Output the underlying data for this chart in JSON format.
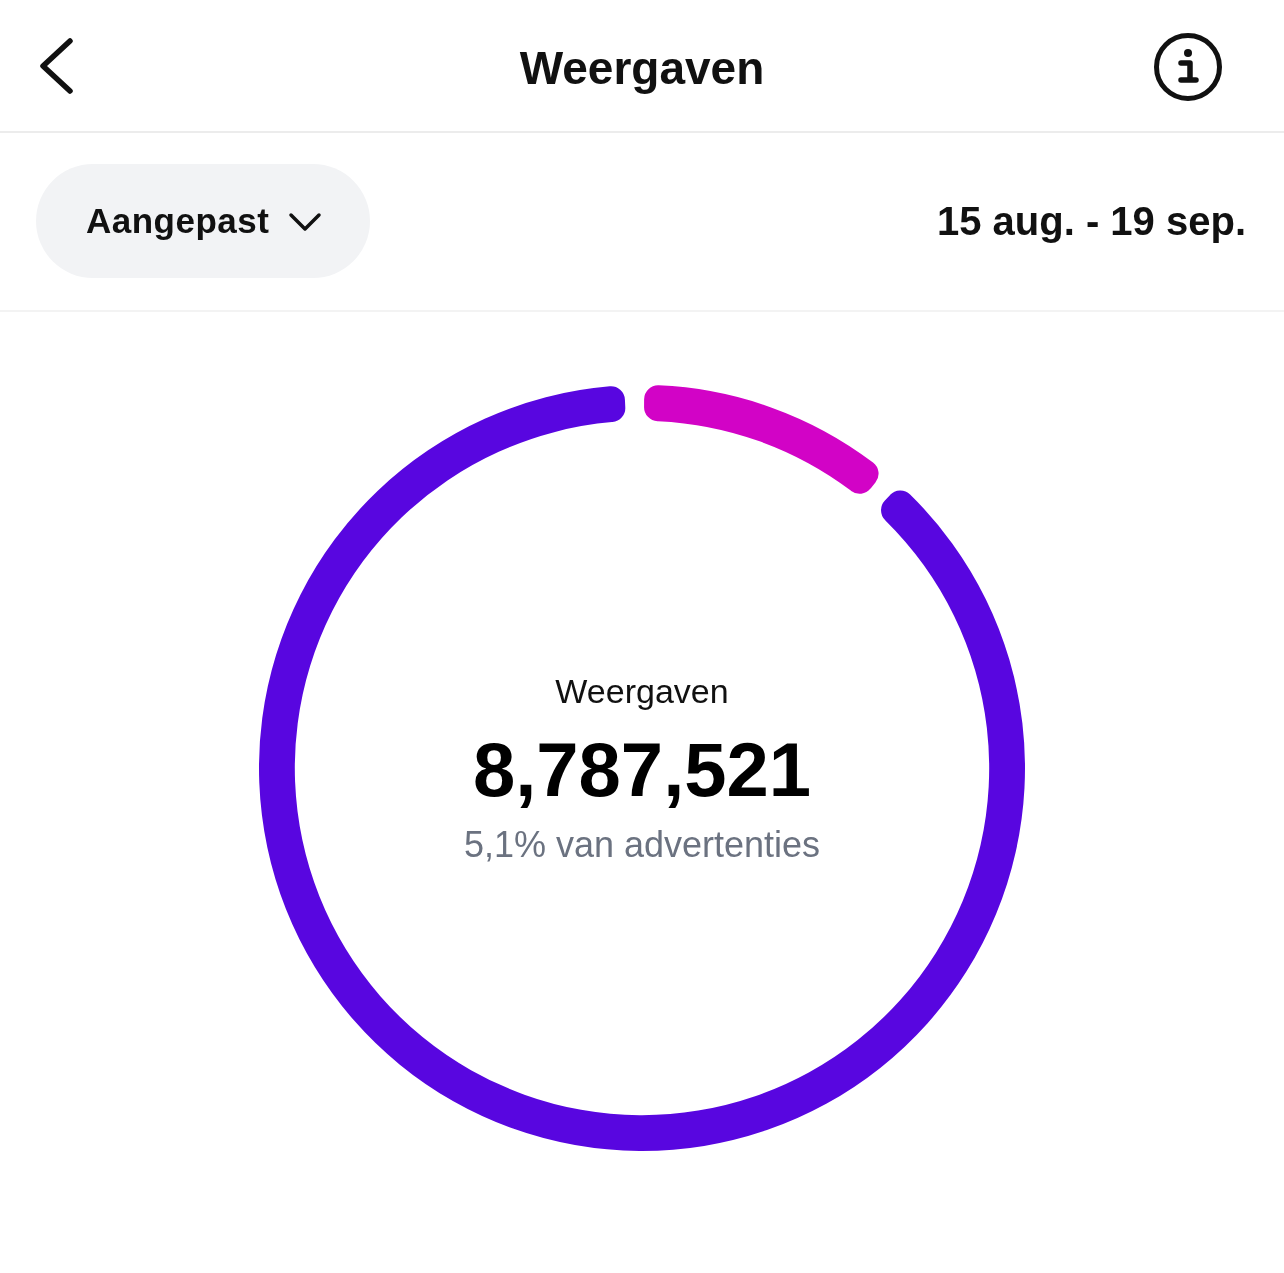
{
  "chart_data": {
    "type": "donut",
    "title": "Weergaven",
    "subtitle": "15 aug. - 19 sep.",
    "annotations": [
      "Aangepast",
      "Weergaven",
      "8,787,521",
      "5,1% van advertenties"
    ],
    "categories": [
      null,
      null
    ],
    "values": [
      11,
      89
    ],
    "colors": [
      "#d203c6",
      "#5806e0"
    ]
  }
}
